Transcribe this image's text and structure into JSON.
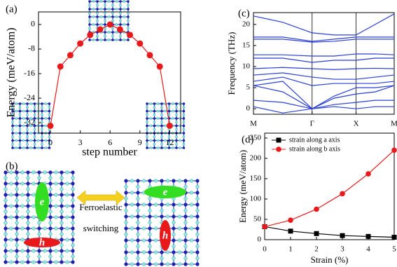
{
  "chart_data": [
    {
      "type": "line",
      "label": "(a)",
      "xlabel": "step number",
      "ylabel": "Energy (meV/atom)",
      "x": [
        0,
        1,
        2,
        3,
        4,
        5,
        6,
        7,
        8,
        9,
        10,
        11,
        12
      ],
      "series": [
        {
          "color": "#e8191b",
          "marker": "circle",
          "values": [
            -33,
            -13.7,
            -10,
            -6.2,
            -3.4,
            -1.6,
            0,
            -1.6,
            -3.4,
            -6.2,
            -10,
            -13.7,
            -33
          ]
        }
      ],
      "xlim": [
        -1.2,
        13.1
      ],
      "ylim": [
        -35.4,
        4.1
      ],
      "xticks": [
        0,
        3,
        6,
        9,
        12
      ],
      "yticks": [
        0,
        -8,
        -16,
        -24,
        -32
      ]
    },
    {
      "type": "line",
      "label": "(c)",
      "ylabel": "Frequency (THz)",
      "color": "#2b3fd6",
      "xgrid": true,
      "x": [
        0,
        0.5,
        1,
        1.375,
        1.75,
        2.075,
        2.4
      ],
      "series": [
        {
          "values": [
            22,
            20.5,
            18,
            17.5,
            17.5,
            20,
            22.5
          ]
        },
        {
          "values": [
            17,
            17,
            16,
            16.5,
            17,
            17,
            17
          ]
        },
        {
          "values": [
            16.5,
            16.5,
            15.8,
            16,
            16.5,
            16.5,
            16.5
          ]
        },
        {
          "values": [
            12.8,
            12.8,
            12.5,
            12.5,
            13,
            13,
            12.8
          ]
        },
        {
          "values": [
            12,
            12,
            11,
            11.5,
            11.5,
            12,
            12
          ]
        },
        {
          "values": [
            9.5,
            9.8,
            9.5,
            9.3,
            9.5,
            9.6,
            9.5
          ]
        },
        {
          "values": [
            8,
            8.5,
            7.5,
            7,
            7,
            7.5,
            8
          ]
        },
        {
          "values": [
            6.5,
            7.5,
            5.5,
            6,
            6,
            6,
            6.5
          ]
        },
        {
          "values": [
            5.5,
            6.5,
            0,
            3,
            5,
            5,
            5.5
          ]
        },
        {
          "values": [
            5.5,
            4,
            0,
            2.5,
            3.5,
            4,
            5.5
          ]
        },
        {
          "values": [
            2,
            1.5,
            0,
            1,
            1.5,
            2,
            2
          ]
        },
        {
          "values": [
            0.5,
            -1,
            0,
            0.5,
            0,
            0.5,
            0.5
          ]
        }
      ],
      "xlim": [
        0,
        2.4
      ],
      "ylim": [
        -1.3,
        22.8
      ],
      "xticks": [
        {
          "value": 0,
          "label": "M"
        },
        {
          "value": 1,
          "label": "Γ"
        },
        {
          "value": 1.75,
          "label": "X"
        },
        {
          "value": 2.4,
          "label": "M"
        }
      ],
      "yticks": [
        0,
        5,
        10,
        15,
        20
      ]
    },
    {
      "type": "line",
      "label": "(d)",
      "xlabel": "Strain (%)",
      "ylabel": "Energy (meV/atom)",
      "legend": "upper left",
      "x": [
        0,
        1,
        2,
        3,
        4,
        5
      ],
      "series": [
        {
          "name": "strain along a axis",
          "color": "#000000",
          "marker": "square",
          "values": [
            32,
            21,
            15,
            10,
            8,
            6
          ]
        },
        {
          "name": "strain along b axis",
          "color": "#e8191b",
          "marker": "circle",
          "values": [
            32,
            48,
            75,
            113,
            162,
            220
          ]
        }
      ],
      "xlim": [
        0,
        5
      ],
      "ylim": [
        0,
        262
      ],
      "xticks": [
        0,
        1,
        2,
        3,
        4,
        5
      ],
      "yticks": [
        0,
        50,
        100,
        150,
        200,
        250
      ]
    }
  ],
  "schematic": {
    "label": "(b)",
    "arrow_text": [
      "Ferroelastic",
      "switching"
    ],
    "carriers": [
      "e",
      "h",
      "e",
      "h"
    ]
  }
}
